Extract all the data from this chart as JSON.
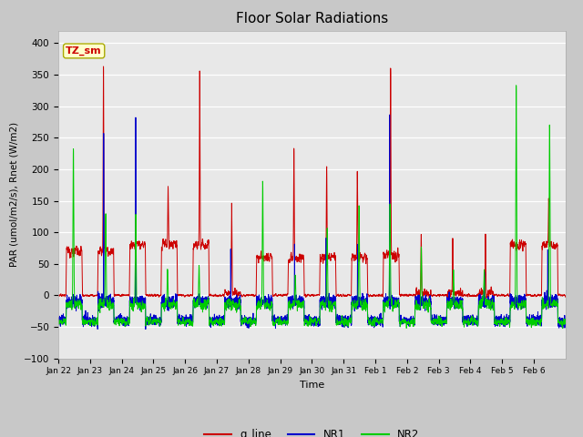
{
  "title": "Floor Solar Radiations",
  "xlabel": "Time",
  "ylabel": "PAR (umol/m2/s), Rnet (W/m2)",
  "ylim": [
    -100,
    420
  ],
  "yticks": [
    -100,
    -50,
    0,
    50,
    100,
    150,
    200,
    250,
    300,
    350,
    400
  ],
  "xtick_labels": [
    "Jan 22",
    "Jan 23",
    "Jan 24",
    "Jan 25",
    "Jan 26",
    "Jan 27",
    "Jan 28",
    "Jan 29",
    "Jan 30",
    "Jan 31",
    "Feb 1",
    "Feb 2",
    "Feb 3",
    "Feb 4",
    "Feb 5",
    "Feb 6"
  ],
  "legend_labels": [
    "q_line",
    "NR1",
    "NR2"
  ],
  "legend_colors": [
    "#cc0000",
    "#0000cc",
    "#00cc00"
  ],
  "annotation_text": "TZ_sm",
  "annotation_color": "#cc0000",
  "annotation_bg": "#ffffcc",
  "fig_bg_color": "#c8c8c8",
  "plot_bg_color": "#e8e8e8",
  "line_width": 0.7,
  "title_fontsize": 11
}
